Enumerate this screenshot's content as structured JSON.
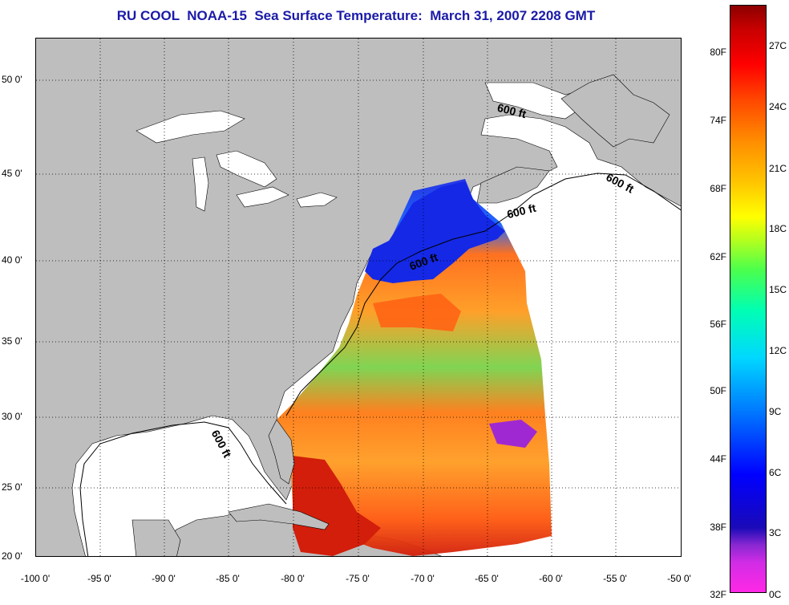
{
  "title": "RU COOL  NOAA-15  Sea Surface Temperature:  March 31, 2007 2208 GMT",
  "latitude_labels": [
    "50 0'",
    "45 0'",
    "40 0'",
    "35 0'",
    "30 0'",
    "25 0'",
    "20 0'"
  ],
  "longitude_labels": [
    "-100 0'",
    "-95 0'",
    "-90 0'",
    "-85 0'",
    "-80 0'",
    "-75 0'",
    "-70 0'",
    "-65 0'",
    "-60 0'",
    "-55 0'",
    "-50 0'"
  ],
  "contour_label": "600 ft",
  "colorbar": {
    "fahrenheit": [
      "80F",
      "74F",
      "68F",
      "62F",
      "56F",
      "50F",
      "44F",
      "38F",
      "32F"
    ],
    "celsius": [
      "27C",
      "24C",
      "21C",
      "18C",
      "15C",
      "12C",
      "9C",
      "6C",
      "3C",
      "0C"
    ]
  },
  "colors": {
    "title": "#1a1aa8",
    "land": "#bebebe",
    "ocean_no_data": "#ffffff"
  }
}
